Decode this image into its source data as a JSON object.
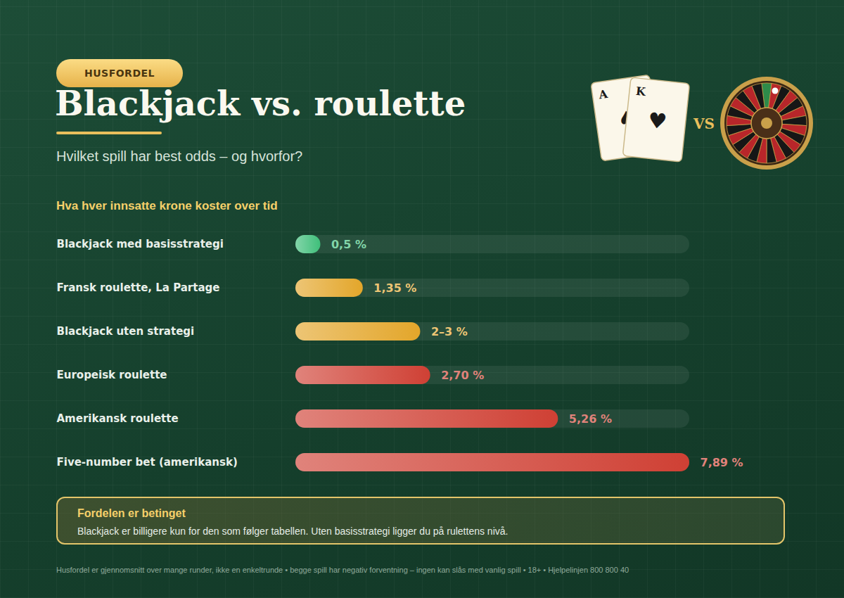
{
  "chart_data": {
    "type": "bar",
    "orientation": "horizontal",
    "badge": "HUSFORDEL",
    "title": "Blackjack vs. roulette",
    "subtitle": "Hvilket spill har best odds – og hvorfor?",
    "illustration_labels": {
      "cards": [
        {
          "rank": "A",
          "suit": "♠"
        },
        {
          "rank": "K",
          "suit": "♥"
        }
      ],
      "versus": "VS"
    },
    "section_title": "Hva hver innsatte krone koster over tid",
    "categories": [
      "Blackjack med basisstrategi",
      "Fransk roulette, La Partage",
      "Blackjack uten strategi",
      "Europeisk roulette",
      "Amerikansk roulette",
      "Five-number bet (amerikansk)"
    ],
    "values": [
      0.5,
      1.35,
      2.5,
      2.7,
      5.26,
      7.89
    ],
    "value_labels": [
      "0,5 %",
      "1,35 %",
      "2–3 %",
      "2,70 %",
      "5,26 %",
      "7,89 %"
    ],
    "colors": [
      "#3fbf7a",
      "#e3a62a",
      "#e3a62a",
      "#cf4034",
      "#cf4034",
      "#cf4034"
    ],
    "xlim": [
      0,
      7.89
    ],
    "tick_labels": false,
    "grid": false,
    "data_labels": true,
    "note": {
      "title": "Fordelen er betinget",
      "text": "Blackjack er billigere kun for den som følger tabellen. Uten basisstrategi ligger du på rulettens nivå."
    },
    "footer": "Husfordel er gjennomsnitt over mange runder, ikke en enkeltrunde • begge spill har negativ forventning – ingen kan slås med vanlig spill • 18+ • Hjelpelinjen 800 800 40"
  }
}
